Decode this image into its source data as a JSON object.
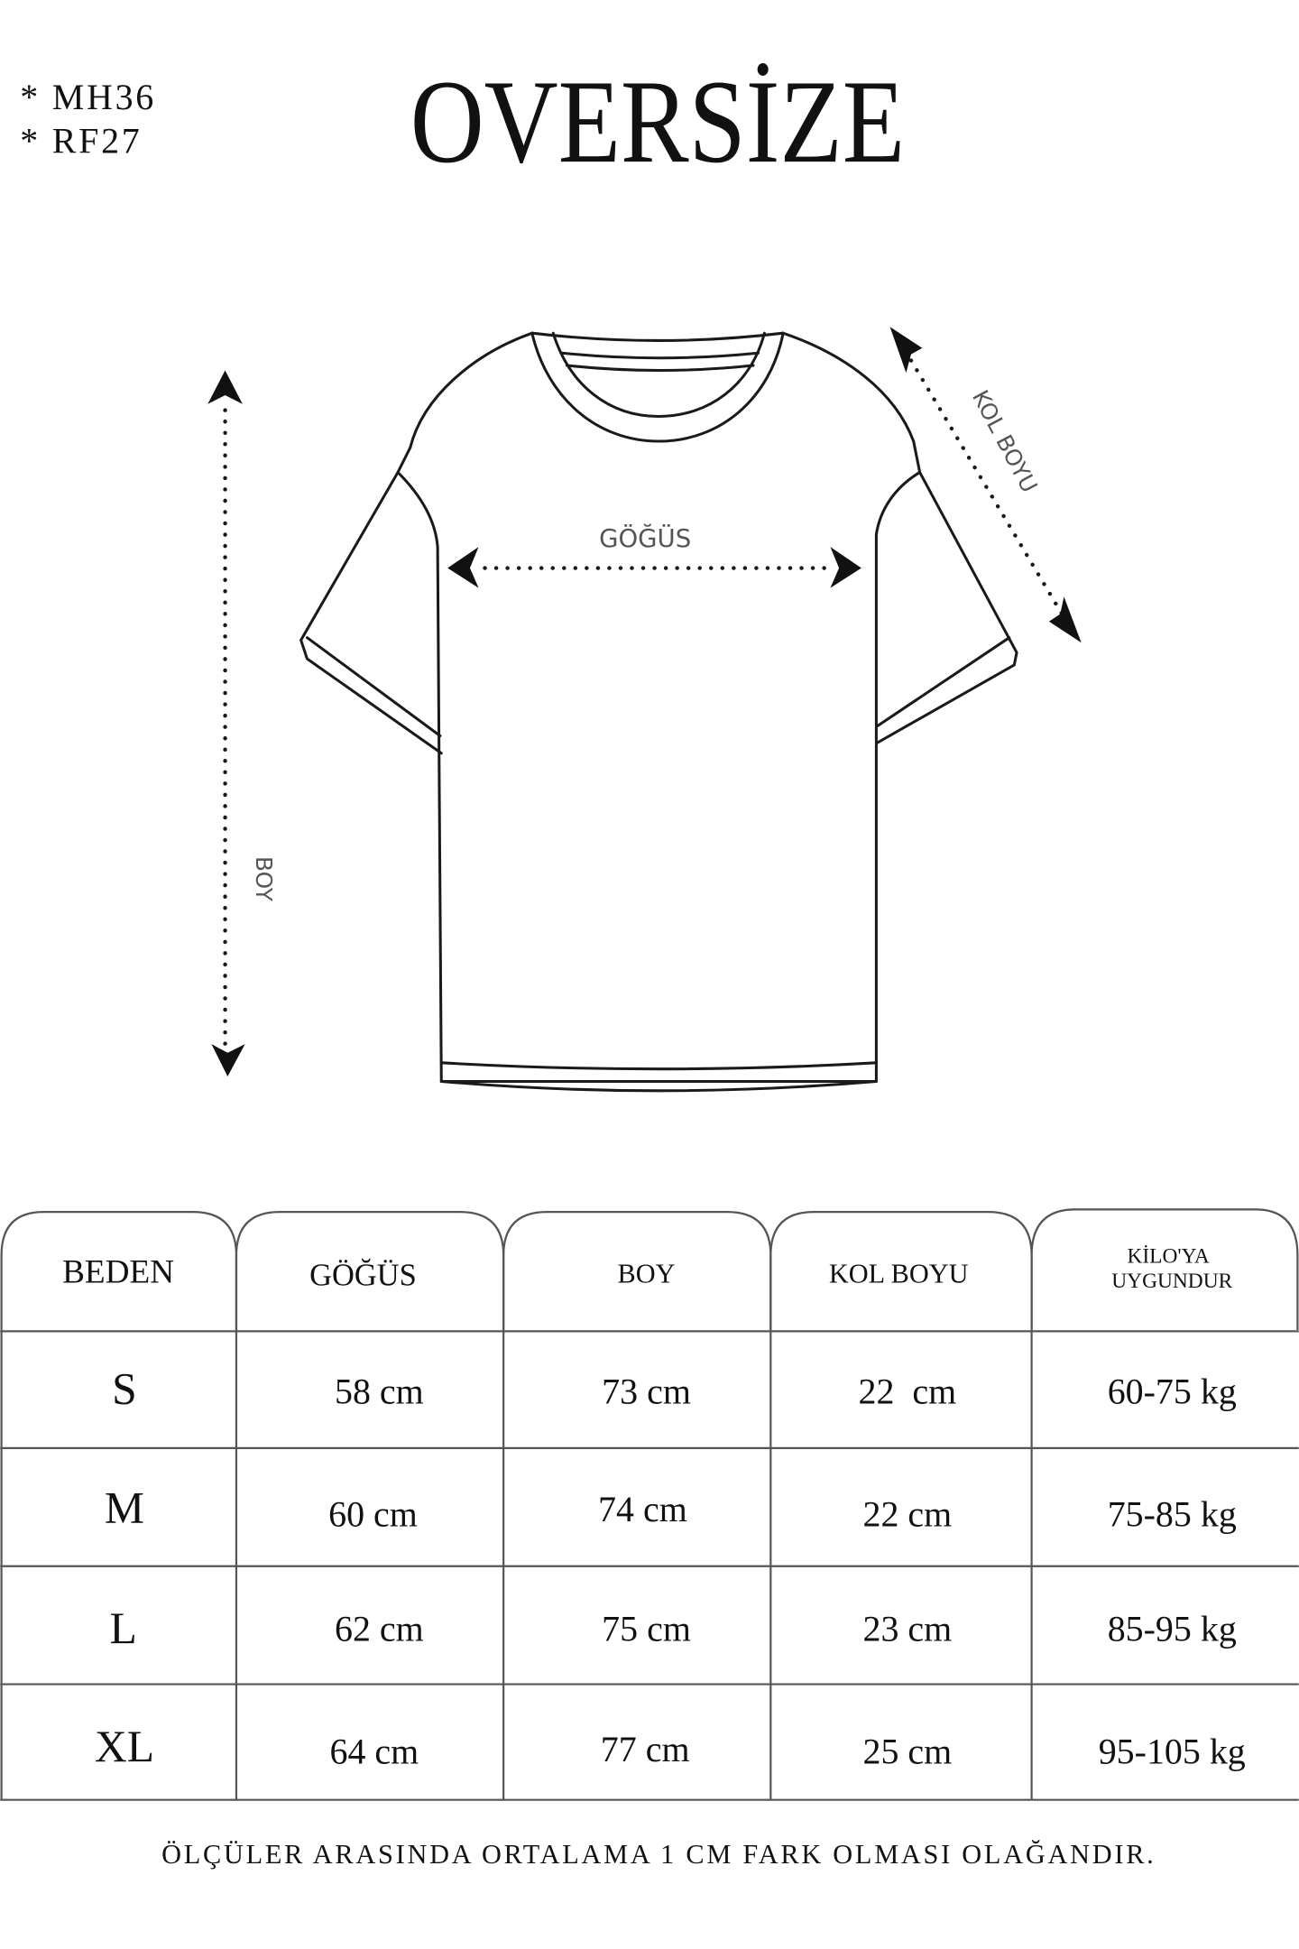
{
  "codes": [
    "* MH36",
    "* RF27"
  ],
  "title": "OVERSİZE",
  "diagram": {
    "chest_label": "GÖĞÜS",
    "length_label": "BOY",
    "sleeve_label": "KOL BOYU"
  },
  "table": {
    "headers": [
      "BEDEN",
      "GÖĞÜS",
      "BOY",
      "KOL BOYU",
      "KİLO'YA",
      "UYGUNDUR"
    ],
    "rows": [
      [
        "S",
        "58 cm",
        "73 cm",
        "22  cm",
        "60-75 kg"
      ],
      [
        "M",
        "60 cm",
        "74 cm",
        "22 cm",
        "75-85 kg"
      ],
      [
        "L",
        "62 cm",
        "75 cm",
        "23 cm",
        "85-95 kg"
      ],
      [
        "XL",
        "64 cm",
        "77 cm",
        "25 cm",
        "95-105 kg"
      ]
    ]
  },
  "footer_note": "ÖLÇÜLER ARASINDA ORTALAMA 1 CM FARK OLMASI OLAĞANDIR."
}
